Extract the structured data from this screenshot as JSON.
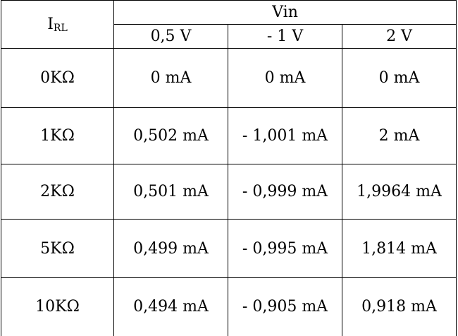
{
  "table": {
    "corner_label_main": "I",
    "corner_label_sub": "RL",
    "group_header": "Vin",
    "columns": [
      "0,5 V",
      "- 1 V",
      "2 V"
    ],
    "rows": [
      {
        "load": "0KΩ",
        "values": [
          "0 mA",
          "0 mA",
          "0 mA"
        ]
      },
      {
        "load": "1KΩ",
        "values": [
          "0,502 mA",
          "- 1,001 mA",
          "2 mA"
        ]
      },
      {
        "load": "2KΩ",
        "values": [
          "0,501 mA",
          "- 0,999 mA",
          "1,9964 mA"
        ]
      },
      {
        "load": "5KΩ",
        "values": [
          "0,499 mA",
          "- 0,995 mA",
          "1,814 mA"
        ]
      },
      {
        "load": "10KΩ",
        "values": [
          "0,494 mA",
          "- 0,905 mA",
          "0,918 mA"
        ]
      }
    ]
  }
}
